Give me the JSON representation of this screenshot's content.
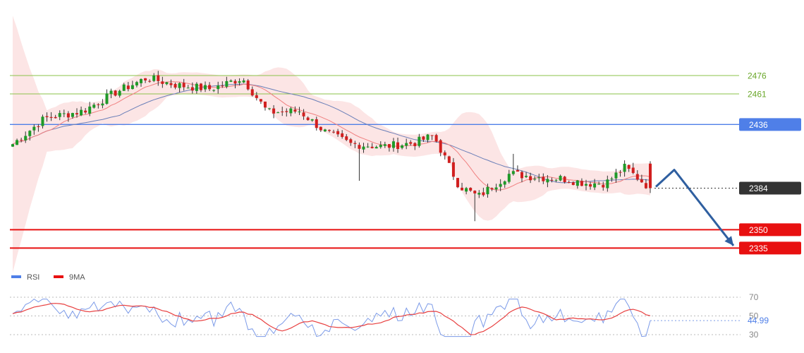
{
  "chart_data": {
    "type": "line",
    "description_series": "candlestick price chart with bollinger band, moving averages, support/resistance levels and RSI subpanel",
    "price_axis": {
      "min": 2310,
      "max": 2520
    },
    "levels": [
      {
        "value": 2476,
        "label": "2476",
        "color": "#8bc34a",
        "style": "thin",
        "tag": false
      },
      {
        "value": 2461,
        "label": "2461",
        "color": "#8bc34a",
        "style": "thin",
        "tag": false
      },
      {
        "value": 2436,
        "label": "2436",
        "color": "#4f7fe8",
        "style": "medium",
        "tag": true
      },
      {
        "value": 2384,
        "label": "2384",
        "color": "#333333",
        "style": "dotted",
        "tag": true
      },
      {
        "value": 2350,
        "label": "2350",
        "color": "#e81010",
        "style": "thick",
        "tag": true
      },
      {
        "value": 2335,
        "label": "2335",
        "color": "#e81010",
        "style": "thick",
        "tag": true
      }
    ],
    "forecast_arrow": {
      "from": 2384,
      "peak": 2392,
      "to": 2337,
      "color": "#2f5fa0"
    },
    "rsi": {
      "legend": [
        {
          "name": "RSI",
          "color": "#4f7fe8"
        },
        {
          "name": "9MA",
          "color": "#e81010"
        }
      ],
      "levels": [
        {
          "value": 70,
          "label": "70"
        },
        {
          "value": 50,
          "label": "50"
        },
        {
          "value": 30,
          "label": "30"
        }
      ],
      "current": "44.99",
      "axis": {
        "min": 22,
        "max": 78
      }
    }
  }
}
